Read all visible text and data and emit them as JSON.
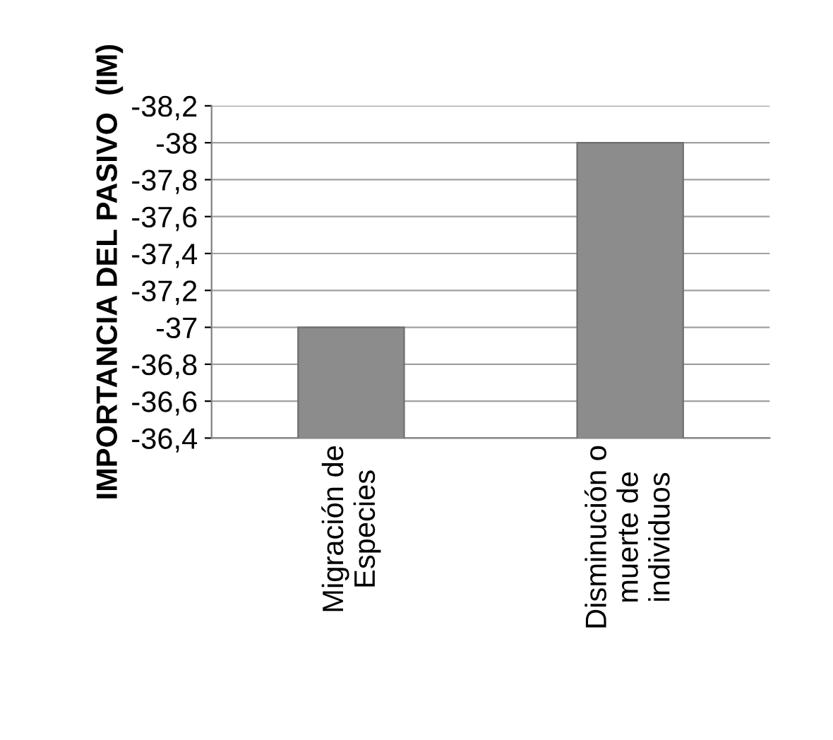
{
  "chart_data": {
    "type": "bar",
    "ylabel": "IMPORTANCIA DEL PASIVO  (IM)",
    "categories": [
      "Migración de\nEspecies",
      "Disminución o\nmuerte de\nindividuos"
    ],
    "values": [
      -37,
      -38
    ],
    "color": "#8c8c8c",
    "ylim": [
      -36.4,
      -38.2
    ],
    "yticks": [
      {
        "value": -36.4,
        "label": "-36,4"
      },
      {
        "value": -36.6,
        "label": "-36,6"
      },
      {
        "value": -36.8,
        "label": "-36,8"
      },
      -37,
      {
        "value": -37.2,
        "label": "-37,2"
      },
      {
        "value": -37.4,
        "label": "-37,4"
      },
      {
        "value": -37.6,
        "label": "-37,6"
      },
      {
        "value": -37.8,
        "label": "-37,8"
      },
      -38,
      {
        "value": -38.2,
        "label": "-38,2"
      }
    ],
    "grid": "y",
    "legend": false
  }
}
